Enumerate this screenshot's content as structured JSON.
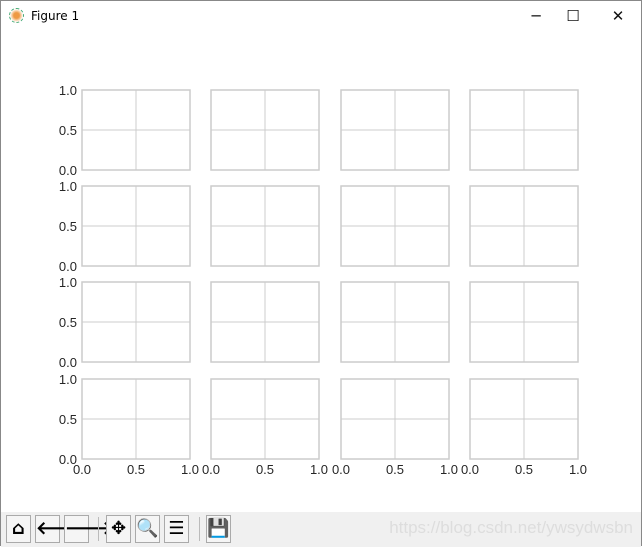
{
  "window": {
    "title": "Figure 1",
    "controls": [
      "minimize",
      "maximize",
      "close"
    ]
  },
  "toolbar": {
    "buttons": [
      {
        "name": "home",
        "icon": "home-icon",
        "glyph": "⌂"
      },
      {
        "name": "back",
        "icon": "arrow-left-icon",
        "glyph": "🡐"
      },
      {
        "name": "forward",
        "icon": "arrow-right-icon",
        "glyph": "🡒"
      },
      {
        "name": "pan",
        "icon": "move-icon",
        "glyph": "✥"
      },
      {
        "name": "zoom",
        "icon": "magnifier-icon",
        "glyph": "🔍"
      },
      {
        "name": "configure-subplots",
        "icon": "sliders-icon",
        "glyph": "☰"
      },
      {
        "name": "save",
        "icon": "floppy-disk-icon",
        "glyph": "💾"
      }
    ],
    "watermark": "https://blog.csdn.net/ywsydwsbn"
  },
  "chart_data": {
    "type": "scatter",
    "layout": "4x4 subplots, shared axes, empty",
    "rows": 4,
    "cols": 4,
    "xlim": [
      0,
      1
    ],
    "ylim": [
      0,
      1
    ],
    "xticks": [
      "0.0",
      "0.5",
      "1.0"
    ],
    "yticks": [
      "0.0",
      "0.5",
      "1.0"
    ],
    "grid": true,
    "colors": {
      "grid": "#cccccc",
      "spine": "#cccccc",
      "tick_label": "#262626"
    }
  }
}
